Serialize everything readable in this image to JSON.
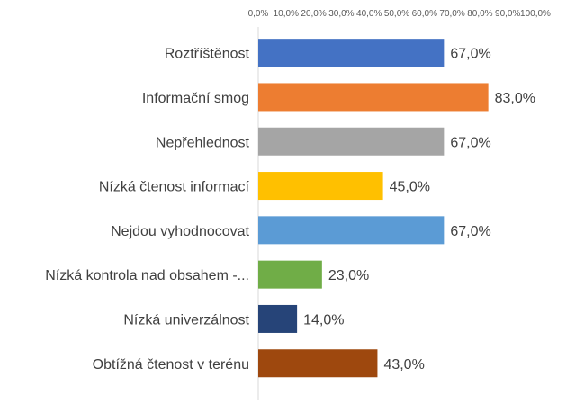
{
  "chart_data": {
    "type": "bar",
    "orientation": "horizontal",
    "categories": [
      "Roztříštěnost",
      "Informační smog",
      "Nepřehlednost",
      "Nízká čtenost informací",
      "Nejdou vyhodnocovat",
      "Nízká kontrola nad obsahem -...",
      "Nízká univerzálnost",
      "Obtížná čtenost v terénu"
    ],
    "values": [
      67.0,
      83.0,
      67.0,
      45.0,
      67.0,
      23.0,
      14.0,
      43.0
    ],
    "value_labels": [
      "67,0%",
      "83,0%",
      "67,0%",
      "45,0%",
      "67,0%",
      "23,0%",
      "14,0%",
      "43,0%"
    ],
    "colors": [
      "#4472c4",
      "#ed7d31",
      "#a5a5a5",
      "#ffc000",
      "#5b9bd5",
      "#70ad47",
      "#264478",
      "#9e480e"
    ],
    "x_ticks": [
      "0,0%",
      "10,0%",
      "20,0%",
      "30,0%",
      "40,0%",
      "50,0%",
      "60,0%",
      "70,0%",
      "80,0%",
      "90,0%",
      "100,0%"
    ],
    "xlim": [
      0,
      100
    ],
    "x_axis_position": "top",
    "grid": false,
    "legend": "none"
  }
}
